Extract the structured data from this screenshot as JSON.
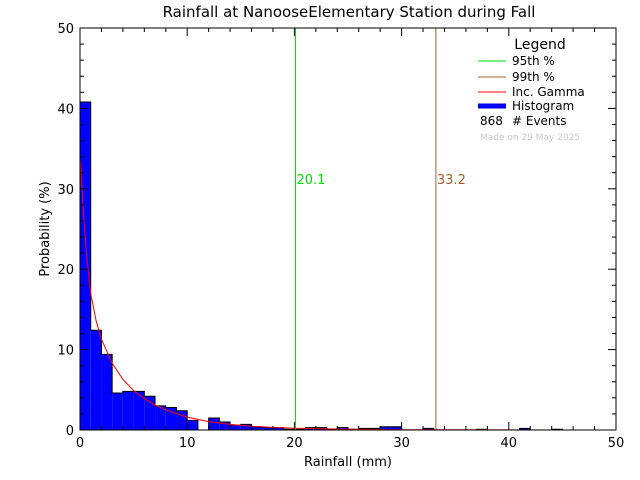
{
  "chart_data": {
    "type": "bar",
    "title": "Rainfall at NanooseElementary Station during Fall",
    "xlabel": "Rainfall (mm)",
    "ylabel": "Probability (%)",
    "xlim": [
      0,
      50
    ],
    "ylim": [
      0,
      50
    ],
    "x_ticks": [
      "0",
      "10",
      "20",
      "30",
      "40",
      "50"
    ],
    "y_ticks": [
      "0",
      "10",
      "20",
      "30",
      "40",
      "50"
    ],
    "bin_width": 1,
    "histogram": [
      {
        "x0": 0,
        "value": 40.8
      },
      {
        "x0": 1,
        "value": 12.4
      },
      {
        "x0": 2,
        "value": 9.4
      },
      {
        "x0": 3,
        "value": 4.6
      },
      {
        "x0": 4,
        "value": 4.8
      },
      {
        "x0": 5,
        "value": 4.8
      },
      {
        "x0": 6,
        "value": 4.2
      },
      {
        "x0": 7,
        "value": 3.0
      },
      {
        "x0": 8,
        "value": 2.8
      },
      {
        "x0": 9,
        "value": 2.4
      },
      {
        "x0": 10,
        "value": 1.2
      },
      {
        "x0": 11,
        "value": 0.0
      },
      {
        "x0": 12,
        "value": 1.5
      },
      {
        "x0": 13,
        "value": 1.0
      },
      {
        "x0": 14,
        "value": 0.6
      },
      {
        "x0": 15,
        "value": 0.7
      },
      {
        "x0": 16,
        "value": 0.4
      },
      {
        "x0": 17,
        "value": 0.3
      },
      {
        "x0": 18,
        "value": 0.3
      },
      {
        "x0": 19,
        "value": 0.1
      },
      {
        "x0": 20,
        "value": 0.1
      },
      {
        "x0": 21,
        "value": 0.3
      },
      {
        "x0": 22,
        "value": 0.3
      },
      {
        "x0": 23,
        "value": 0.1
      },
      {
        "x0": 24,
        "value": 0.3
      },
      {
        "x0": 25,
        "value": 0.1
      },
      {
        "x0": 26,
        "value": 0.2
      },
      {
        "x0": 27,
        "value": 0.2
      },
      {
        "x0": 28,
        "value": 0.4
      },
      {
        "x0": 29,
        "value": 0.4
      },
      {
        "x0": 32,
        "value": 0.2
      },
      {
        "x0": 37,
        "value": 0.1
      },
      {
        "x0": 41,
        "value": 0.2
      },
      {
        "x0": 44,
        "value": 0.1
      }
    ],
    "gamma_curve": [
      [
        0.05,
        33.5
      ],
      [
        0.3,
        27.5
      ],
      [
        0.6,
        22.0
      ],
      [
        1.0,
        17.0
      ],
      [
        1.5,
        13.6
      ],
      [
        2.0,
        11.3
      ],
      [
        3.0,
        8.3
      ],
      [
        4.0,
        6.3
      ],
      [
        5.0,
        4.9
      ],
      [
        6.0,
        3.9
      ],
      [
        7.0,
        3.1
      ],
      [
        8.0,
        2.5
      ],
      [
        10.0,
        1.6
      ],
      [
        12.0,
        1.05
      ],
      [
        14.0,
        0.7
      ],
      [
        16.0,
        0.47
      ],
      [
        18.0,
        0.32
      ],
      [
        20.0,
        0.22
      ],
      [
        25.0,
        0.09
      ],
      [
        30.0,
        0.04
      ],
      [
        35.0,
        0.02
      ],
      [
        40.0,
        0.01
      ],
      [
        45.0,
        0.005
      ],
      [
        50.0,
        0.002
      ]
    ],
    "percentile_95": {
      "value": 20.1,
      "label": "20.1",
      "color": "#00dd00"
    },
    "percentile_99": {
      "value": 33.2,
      "label": "33.2",
      "color": "#a0622d"
    },
    "gamma_color": "#ff0000",
    "histogram_color": "#0000ff",
    "legend": {
      "position": "top-right",
      "title": "Legend",
      "entries": [
        {
          "label": "95th %",
          "color": "#00dd00"
        },
        {
          "label": "99th %",
          "color": "#a0622d"
        },
        {
          "label": "Inc. Gamma",
          "color": "#ff0000"
        },
        {
          "label": "Histogram",
          "color": "#0000ff"
        }
      ],
      "events_count": "868",
      "events_label": "# Events",
      "made_on": "Made on 29 May 2025"
    }
  }
}
